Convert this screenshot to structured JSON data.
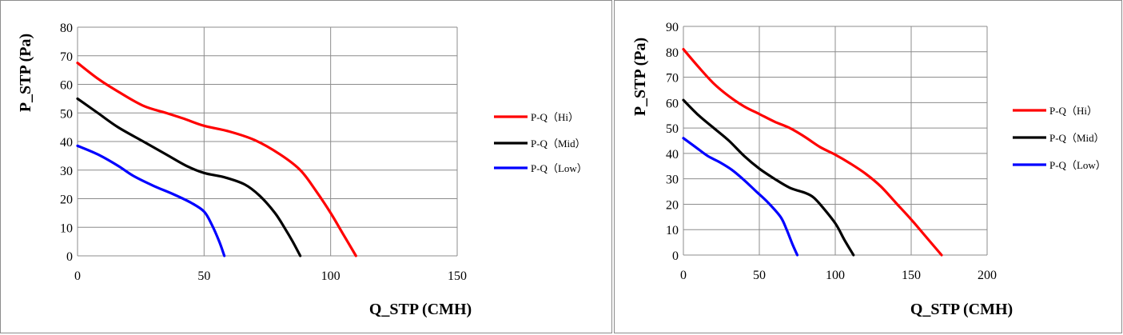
{
  "chart_data": [
    {
      "type": "line",
      "xlabel": "Q_STP (CMH)",
      "ylabel": "P_STP (Pa)",
      "xlim": [
        0,
        150
      ],
      "ylim": [
        0,
        80
      ],
      "xticks": [
        0,
        50,
        100,
        150
      ],
      "yticks": [
        0,
        10,
        20,
        30,
        40,
        50,
        60,
        70,
        80
      ],
      "grid": true,
      "legend_position": "right",
      "series": [
        {
          "name": "P-Q（Hi）",
          "color": "#ff0000",
          "points": [
            [
              0,
              67.5
            ],
            [
              8,
              62
            ],
            [
              16,
              57.5
            ],
            [
              26,
              52.5
            ],
            [
              35,
              50
            ],
            [
              42,
              48
            ],
            [
              50,
              45.5
            ],
            [
              60,
              43.5
            ],
            [
              70,
              40.5
            ],
            [
              80,
              35.5
            ],
            [
              88,
              30
            ],
            [
              94,
              23
            ],
            [
              100,
              15
            ],
            [
              105,
              7.5
            ],
            [
              110,
              0
            ]
          ]
        },
        {
          "name": "P-Q（Mid）",
          "color": "#000000",
          "points": [
            [
              0,
              55
            ],
            [
              8,
              50
            ],
            [
              16,
              45
            ],
            [
              26,
              40
            ],
            [
              35,
              35.5
            ],
            [
              43,
              31.5
            ],
            [
              50,
              29
            ],
            [
              58,
              27.5
            ],
            [
              66,
              25
            ],
            [
              72,
              21
            ],
            [
              78,
              15
            ],
            [
              82,
              9.5
            ],
            [
              85,
              5
            ],
            [
              88,
              0
            ]
          ]
        },
        {
          "name": "P-Q（Low）",
          "color": "#0000ff",
          "points": [
            [
              0,
              38.5
            ],
            [
              8,
              35.5
            ],
            [
              16,
              31.5
            ],
            [
              22,
              28
            ],
            [
              30,
              24.5
            ],
            [
              38,
              21.5
            ],
            [
              45,
              18.5
            ],
            [
              50,
              15.5
            ],
            [
              53,
              11
            ],
            [
              56,
              5
            ],
            [
              58,
              0
            ]
          ]
        }
      ]
    },
    {
      "type": "line",
      "xlabel": "Q_STP (CMH)",
      "ylabel": "P_STP (Pa)",
      "xlim": [
        0,
        200
      ],
      "ylim": [
        0,
        90
      ],
      "xticks": [
        0,
        50,
        100,
        150,
        200
      ],
      "yticks": [
        0,
        10,
        20,
        30,
        40,
        50,
        60,
        70,
        80,
        90
      ],
      "grid": true,
      "legend_position": "right",
      "series": [
        {
          "name": "P-Q（Hi）",
          "color": "#ff0000",
          "points": [
            [
              0,
              81
            ],
            [
              10,
              74
            ],
            [
              20,
              67.5
            ],
            [
              30,
              62.5
            ],
            [
              40,
              58.5
            ],
            [
              50,
              55.5
            ],
            [
              60,
              52.5
            ],
            [
              70,
              50
            ],
            [
              80,
              46.5
            ],
            [
              90,
              42.5
            ],
            [
              100,
              39.5
            ],
            [
              110,
              36
            ],
            [
              120,
              32
            ],
            [
              130,
              27
            ],
            [
              140,
              20.5
            ],
            [
              150,
              14
            ],
            [
              160,
              7
            ],
            [
              170,
              0
            ]
          ]
        },
        {
          "name": "P-Q（Mid）",
          "color": "#000000",
          "points": [
            [
              0,
              61
            ],
            [
              10,
              55
            ],
            [
              20,
              50
            ],
            [
              30,
              45
            ],
            [
              40,
              39
            ],
            [
              50,
              34
            ],
            [
              60,
              30
            ],
            [
              70,
              26.5
            ],
            [
              80,
              24.5
            ],
            [
              85,
              23
            ],
            [
              90,
              20
            ],
            [
              100,
              12.5
            ],
            [
              106,
              6
            ],
            [
              112,
              0
            ]
          ]
        },
        {
          "name": "P-Q（Low）",
          "color": "#0000ff",
          "points": [
            [
              0,
              46
            ],
            [
              8,
              42.5
            ],
            [
              16,
              39
            ],
            [
              24,
              36.5
            ],
            [
              32,
              33.5
            ],
            [
              40,
              29.5
            ],
            [
              48,
              25
            ],
            [
              56,
              20.5
            ],
            [
              64,
              15
            ],
            [
              68,
              10
            ],
            [
              72,
              4
            ],
            [
              75,
              0
            ]
          ]
        }
      ]
    }
  ]
}
